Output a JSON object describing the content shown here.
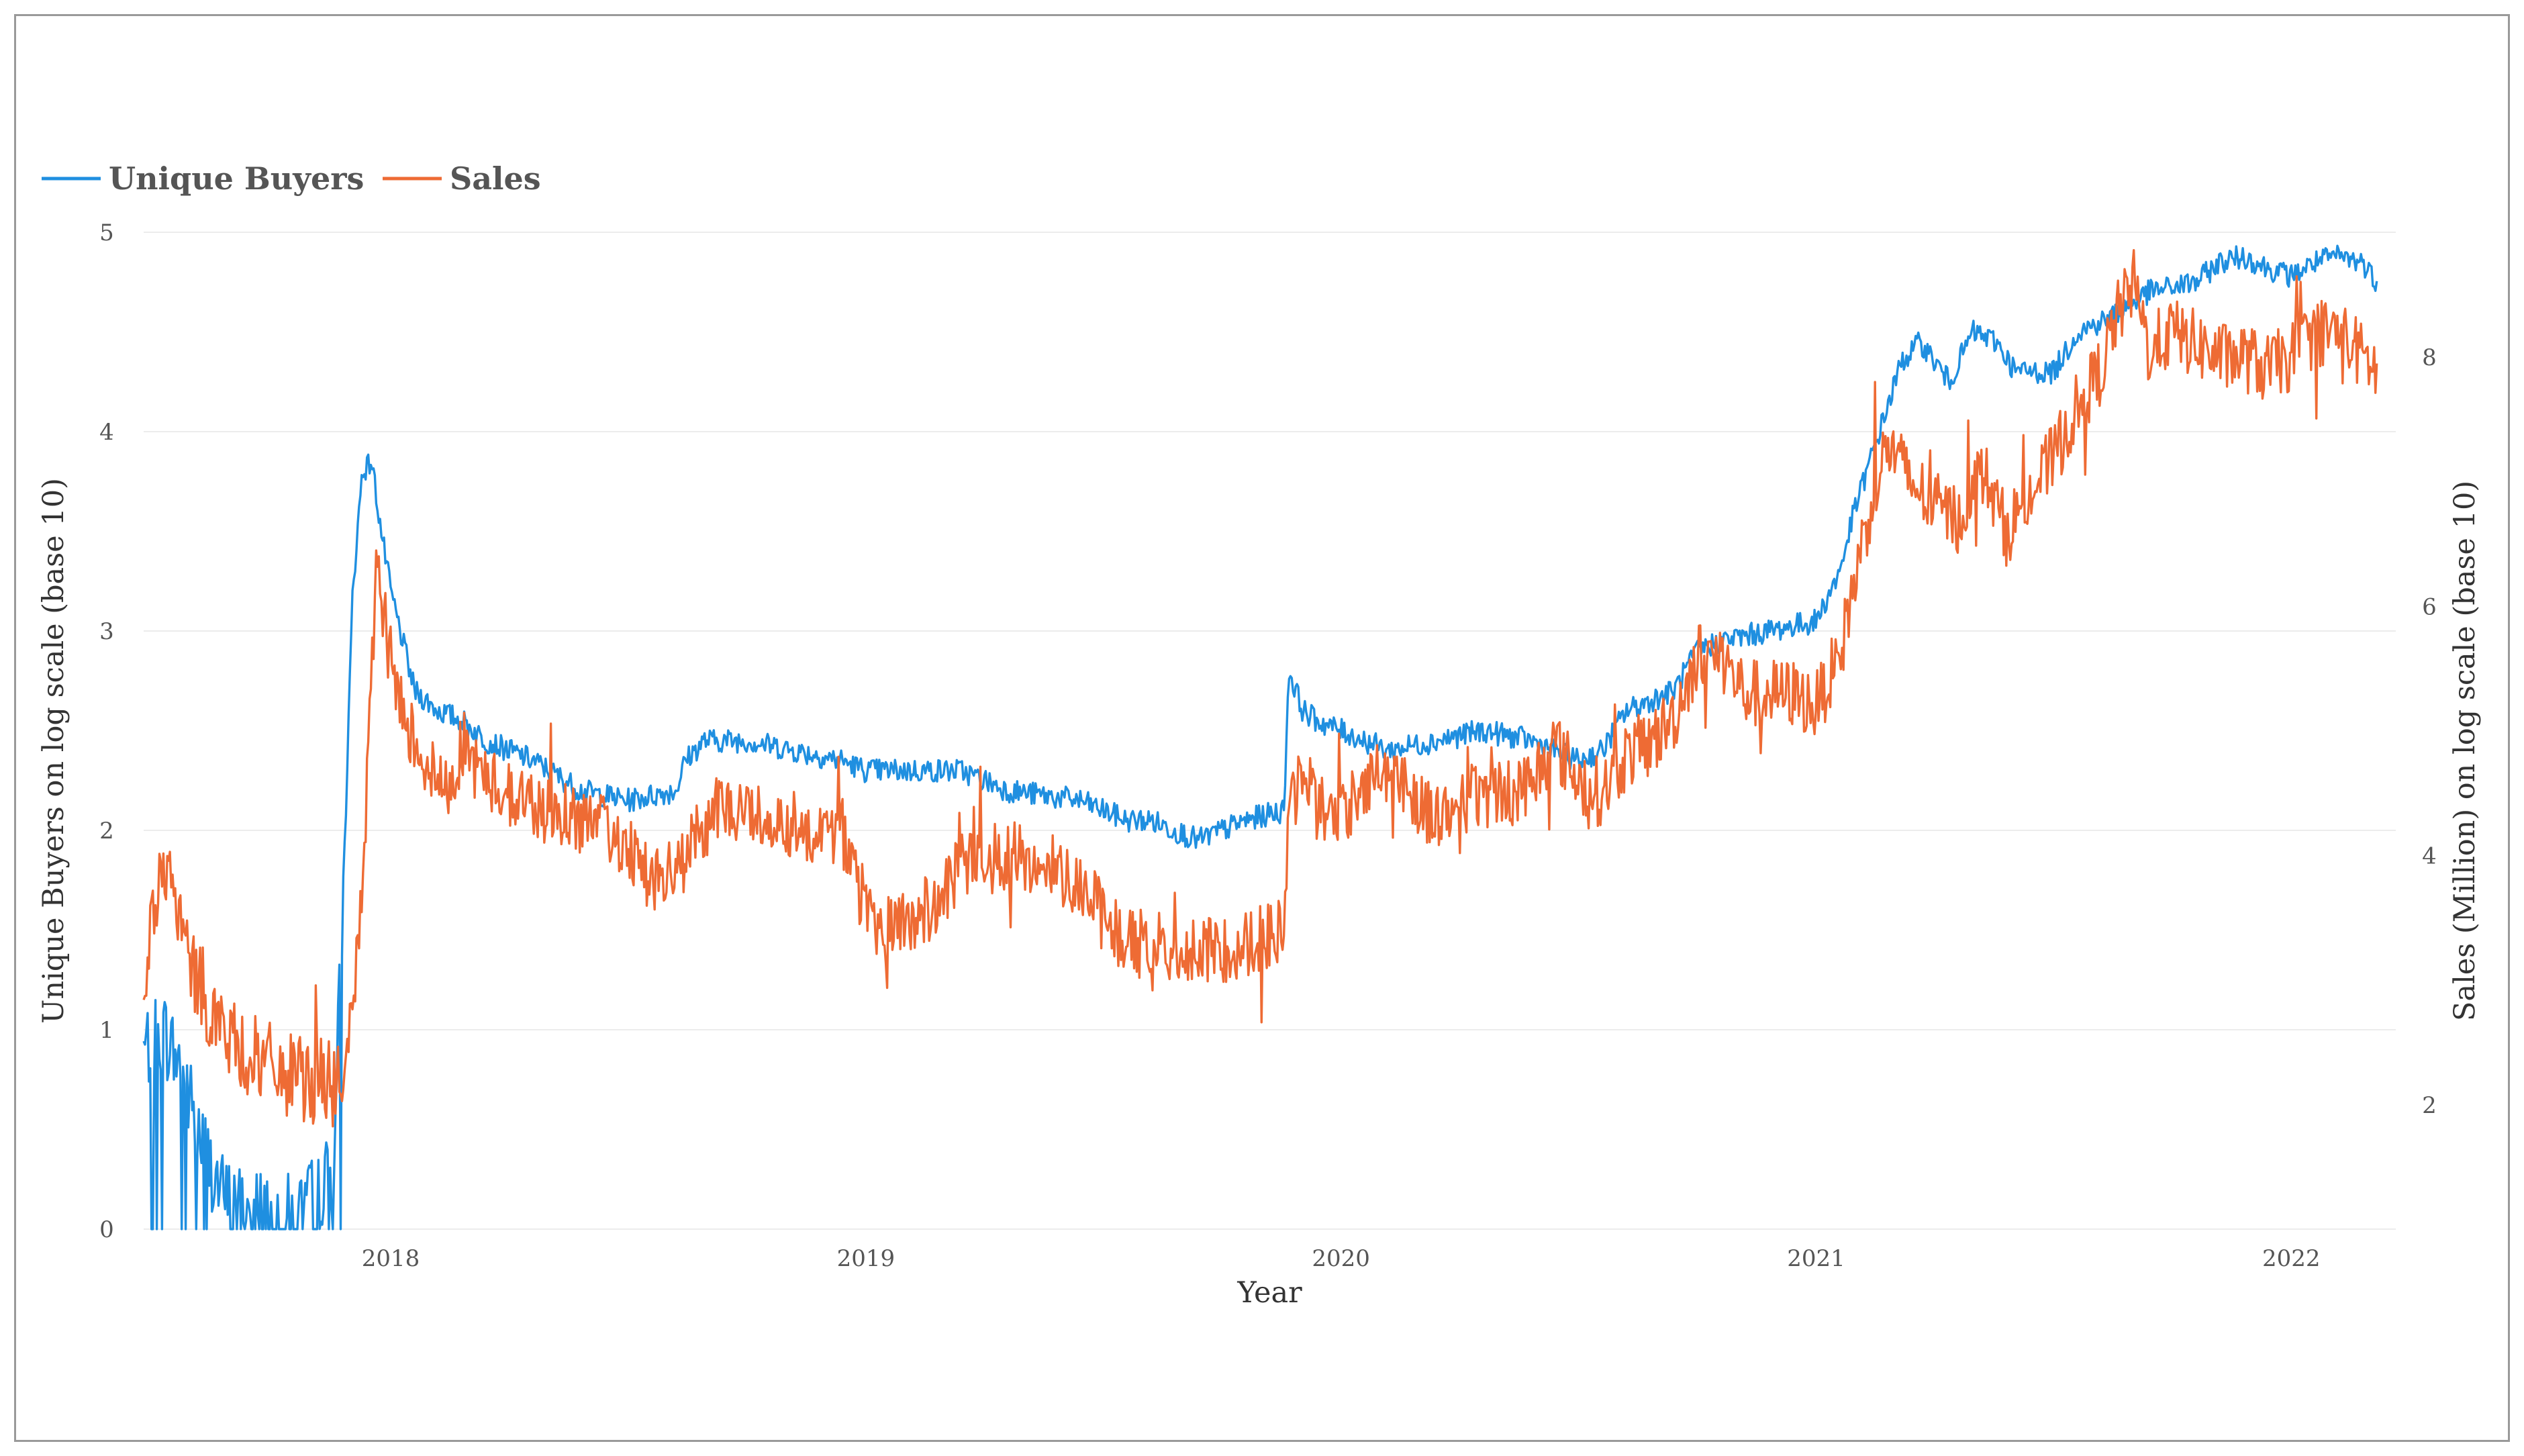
{
  "chart_data": {
    "type": "line",
    "x_axis": {
      "label": "Year",
      "tick_labels": [
        "2018",
        "2019",
        "2020",
        "2021",
        "2022"
      ],
      "range": [
        2017.48,
        2022.22
      ]
    },
    "y_axis_left": {
      "label": "Unique Buyers on log scale (base 10)",
      "ticks": [
        0,
        1,
        2,
        3,
        4,
        5
      ],
      "range": [
        0,
        5
      ]
    },
    "y_axis_right": {
      "label": "Sales (Million) on log scale (base 10)",
      "ticks": [
        2,
        4,
        6,
        8
      ],
      "range": [
        1,
        9.8
      ]
    },
    "grid": true,
    "legend": {
      "placement": "top-left"
    },
    "series": [
      {
        "name": "Unique Buyers",
        "axis": "left",
        "color": "#1f8fe0",
        "x": [
          2017.48,
          2017.52,
          2017.56,
          2017.6,
          2017.65,
          2017.7,
          2017.75,
          2017.8,
          2017.85,
          2017.88,
          2017.9,
          2017.92,
          2017.94,
          2017.96,
          2017.98,
          2018.0,
          2018.05,
          2018.1,
          2018.15,
          2018.2,
          2018.3,
          2018.4,
          2018.5,
          2018.6,
          2018.62,
          2018.66,
          2018.75,
          2018.85,
          2018.95,
          2019.0,
          2019.05,
          2019.1,
          2019.2,
          2019.3,
          2019.45,
          2019.5,
          2019.55,
          2019.6,
          2019.65,
          2019.7,
          2019.8,
          2019.88,
          2019.89,
          2019.92,
          2019.95,
          2020.0,
          2020.05,
          2020.1,
          2020.2,
          2020.3,
          2020.4,
          2020.45,
          2020.5,
          2020.55,
          2020.6,
          2020.65,
          2020.7,
          2020.75,
          2020.8,
          2020.9,
          2021.0,
          2021.05,
          2021.08,
          2021.12,
          2021.18,
          2021.22,
          2021.28,
          2021.33,
          2021.38,
          2021.42,
          2021.5,
          2021.55,
          2021.6,
          2021.65,
          2021.7,
          2021.8,
          2021.85,
          2021.9,
          2021.95,
          2022.0,
          2022.05,
          2022.1,
          2022.15,
          2022.18
        ],
        "values": [
          0.9,
          1.0,
          0.8,
          0.45,
          0.15,
          0.1,
          0.1,
          0.05,
          0.2,
          0.3,
          1.7,
          3.2,
          3.8,
          3.85,
          3.5,
          3.2,
          2.7,
          2.6,
          2.55,
          2.45,
          2.35,
          2.2,
          2.15,
          2.2,
          2.35,
          2.45,
          2.45,
          2.4,
          2.35,
          2.3,
          2.3,
          2.3,
          2.3,
          2.2,
          2.15,
          2.1,
          2.05,
          2.05,
          2.0,
          1.95,
          2.05,
          2.1,
          2.8,
          2.6,
          2.55,
          2.5,
          2.45,
          2.4,
          2.45,
          2.5,
          2.45,
          2.4,
          2.35,
          2.4,
          2.6,
          2.65,
          2.7,
          2.9,
          2.95,
          3.0,
          3.05,
          3.3,
          3.6,
          3.9,
          4.35,
          4.45,
          4.25,
          4.5,
          4.45,
          4.3,
          4.3,
          4.5,
          4.55,
          4.62,
          4.7,
          4.75,
          4.85,
          4.88,
          4.82,
          4.78,
          4.85,
          4.88,
          4.85,
          4.75
        ]
      },
      {
        "name": "Sales",
        "axis": "right",
        "color": "#ee6b34",
        "x": [
          2017.48,
          2017.5,
          2017.53,
          2017.55,
          2017.58,
          2017.62,
          2017.66,
          2017.7,
          2017.75,
          2017.8,
          2017.85,
          2017.88,
          2017.9,
          2017.93,
          2017.95,
          2017.97,
          2017.99,
          2018.02,
          2018.08,
          2018.12,
          2018.15,
          2018.2,
          2018.3,
          2018.4,
          2018.5,
          2018.55,
          2018.6,
          2018.65,
          2018.7,
          2018.8,
          2018.9,
          2018.95,
          2019.0,
          2019.05,
          2019.1,
          2019.15,
          2019.2,
          2019.3,
          2019.4,
          2019.45,
          2019.5,
          2019.55,
          2019.6,
          2019.7,
          2019.8,
          2019.88,
          2019.89,
          2019.92,
          2019.95,
          2020.0,
          2020.05,
          2020.1,
          2020.15,
          2020.2,
          2020.25,
          2020.3,
          2020.35,
          2020.4,
          2020.45,
          2020.5,
          2020.55,
          2020.6,
          2020.65,
          2020.7,
          2020.75,
          2020.8,
          2020.85,
          2020.9,
          2020.95,
          2021.0,
          2021.05,
          2021.08,
          2021.12,
          2021.15,
          2021.2,
          2021.25,
          2021.3,
          2021.35,
          2021.4,
          2021.45,
          2021.5,
          2021.55,
          2021.6,
          2021.63,
          2021.67,
          2021.7,
          2021.75,
          2021.8,
          2021.85,
          2021.9,
          2021.95,
          2022.0,
          2022.05,
          2022.1,
          2022.15,
          2022.18
        ],
        "values": [
          3.0,
          3.6,
          3.9,
          3.5,
          3.1,
          2.8,
          2.5,
          2.4,
          2.3,
          2.2,
          2.2,
          2.15,
          2.1,
          3.2,
          4.5,
          6.3,
          5.8,
          5.2,
          4.7,
          4.5,
          4.9,
          4.6,
          4.4,
          4.3,
          4.1,
          3.8,
          3.85,
          4.2,
          4.4,
          4.3,
          4.2,
          4.2,
          3.5,
          3.4,
          3.5,
          3.6,
          3.9,
          4.0,
          3.9,
          3.8,
          3.5,
          3.3,
          3.3,
          3.2,
          3.3,
          3.4,
          4.3,
          4.7,
          4.4,
          4.3,
          4.6,
          4.7,
          4.5,
          4.3,
          4.4,
          4.5,
          4.5,
          4.6,
          4.9,
          4.6,
          4.5,
          4.8,
          4.9,
          5.1,
          5.6,
          5.6,
          5.3,
          5.3,
          5.3,
          5.2,
          5.6,
          6.2,
          6.9,
          7.3,
          7.0,
          6.8,
          6.7,
          7.1,
          6.6,
          6.9,
          7.2,
          7.6,
          7.9,
          8.3,
          8.6,
          8.05,
          8.2,
          8.1,
          8.0,
          8.0,
          7.9,
          8.0,
          8.2,
          8.2,
          8.0,
          7.9
        ]
      }
    ]
  }
}
